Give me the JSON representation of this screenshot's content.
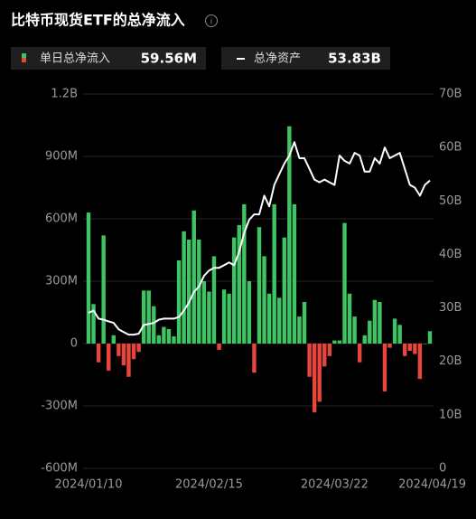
{
  "chart_data": {
    "type": "bar_line",
    "title": "比特币现货ETF的总净流入",
    "categories": [
      "2024/01/10",
      null,
      null,
      null,
      null,
      null,
      null,
      null,
      null,
      null,
      null,
      null,
      null,
      null,
      null,
      null,
      null,
      null,
      null,
      null,
      null,
      null,
      null,
      null,
      "2024/02/15",
      null,
      null,
      null,
      null,
      null,
      null,
      null,
      null,
      null,
      null,
      null,
      null,
      null,
      null,
      null,
      null,
      null,
      null,
      null,
      null,
      null,
      null,
      null,
      null,
      "2024/03/22",
      null,
      null,
      null,
      null,
      null,
      null,
      null,
      null,
      null,
      null,
      null,
      null,
      null,
      null,
      null,
      null,
      null,
      null,
      "2024/04/19"
    ],
    "series": [
      {
        "name": "单日总净流入",
        "type": "bar",
        "axis": "y",
        "color": "#3fc463",
        "negative_color": "#e8453c",
        "latest_label": "59.56M",
        "values": [
          630000000.0,
          190000000.0,
          -90000000.0,
          520000000.0,
          -130000000.0,
          40000000.0,
          -60000000.0,
          -105000000.0,
          -160000000.0,
          -75000000.0,
          -40000000.0,
          255000000.0,
          255000000.0,
          180000000.0,
          40000000.0,
          80000000.0,
          70000000.0,
          35000000.0,
          400000000.0,
          540000000.0,
          500000000.0,
          640000000.0,
          500000000.0,
          300000000.0,
          250000000.0,
          420000000.0,
          -30000000.0,
          260000000.0,
          240000000.0,
          510000000.0,
          570000000.0,
          670000000.0,
          300000000.0,
          -140000000.0,
          560000000.0,
          420000000.0,
          240000000.0,
          670000000.0,
          220000000.0,
          510000000.0,
          1045000000.0,
          670000000.0,
          130000000.0,
          200000000.0,
          -160000000.0,
          -330000000.0,
          -280000000.0,
          -110000000.0,
          -60000000.0,
          15000000.0,
          15000000.0,
          580000000.0,
          240000000.0,
          130000000.0,
          -90000000.0,
          40000000.0,
          110000000.0,
          210000000.0,
          200000000.0,
          -230000000.0,
          -20000000.0,
          120000000.0,
          90000000.0,
          -60000000.0,
          -35000000.0,
          -50000000.0,
          -170000000.0,
          0,
          59560000.0
        ]
      },
      {
        "name": "总净资产",
        "type": "line",
        "axis": "y2",
        "color": "#ffffff",
        "latest_label": "53.83B",
        "values": [
          29100000000.0,
          29500000000.0,
          28000000000.0,
          27800000000.0,
          27500000000.0,
          27200000000.0,
          26000000000.0,
          25500000000.0,
          25000000000.0,
          25000000000.0,
          25200000000.0,
          26800000000.0,
          27000000000.0,
          27200000000.0,
          27800000000.0,
          28000000000.0,
          28000000000.0,
          28000000000.0,
          28300000000.0,
          29500000000.0,
          31000000000.0,
          33000000000.0,
          34000000000.0,
          36000000000.0,
          37000000000.0,
          37500000000.0,
          37500000000.0,
          38000000000.0,
          38500000000.0,
          38000000000.0,
          40500000000.0,
          44000000000.0,
          46500000000.0,
          47500000000.0,
          47500000000.0,
          51000000000.0,
          49000000000.0,
          53000000000.0,
          55000000000.0,
          57000000000.0,
          58500000000.0,
          61000000000.0,
          58000000000.0,
          58000000000.0,
          56000000000.0,
          54000000000.0,
          53500000000.0,
          54000000000.0,
          53500000000.0,
          53000000000.0,
          58500000000.0,
          57500000000.0,
          57000000000.0,
          59000000000.0,
          58500000000.0,
          55500000000.0,
          55500000000.0,
          58000000000.0,
          57000000000.0,
          60000000000.0,
          58000000000.0,
          58500000000.0,
          59000000000.0,
          56000000000.0,
          53000000000.0,
          52500000000.0,
          51000000000.0,
          53000000000.0,
          53830000000.0
        ]
      }
    ],
    "ylim": [
      -600000000.0,
      1200000000.0
    ],
    "yticks": [
      {
        "value": 1200000000.0,
        "label": "1.2B"
      },
      {
        "value": 900000000.0,
        "label": "900M"
      },
      {
        "value": 600000000.0,
        "label": "600M"
      },
      {
        "value": 300000000.0,
        "label": "300M"
      },
      0,
      {
        "value": -300000000.0,
        "label": "-300M"
      },
      {
        "value": -600000000.0,
        "label": "-600M"
      }
    ],
    "y2lim": [
      0,
      70000000000.0
    ],
    "y2ticks": [
      {
        "value": 70000000000.0,
        "label": "70B"
      },
      {
        "value": 60000000000.0,
        "label": "60B"
      },
      {
        "value": 50000000000.0,
        "label": "50B"
      },
      {
        "value": 40000000000.0,
        "label": "40B"
      },
      {
        "value": 30000000000.0,
        "label": "30B"
      },
      {
        "value": 20000000000.0,
        "label": "20B"
      },
      {
        "value": 10000000000.0,
        "label": "10B"
      },
      0
    ],
    "grid": true
  }
}
